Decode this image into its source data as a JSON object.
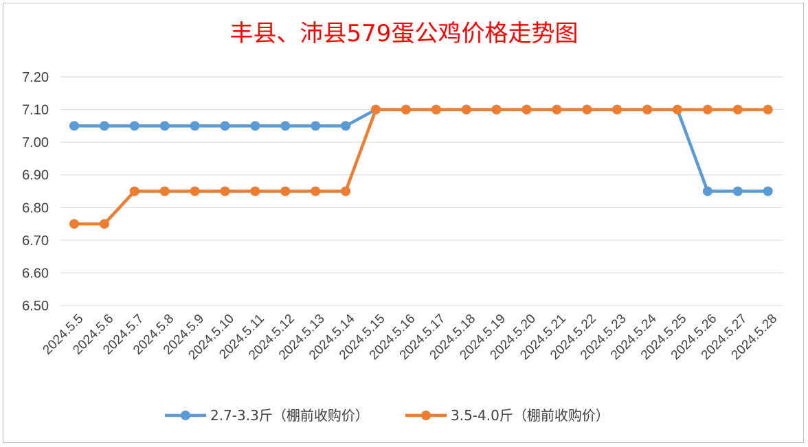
{
  "chart_data": {
    "type": "line",
    "title": "丰县、沛县579蛋公鸡价格走势图",
    "categories": [
      "2024.5.5",
      "2024.5.6",
      "2024.5.7",
      "2024.5.8",
      "2024.5.9",
      "2024.5.10",
      "2024.5.11",
      "2024.5.12",
      "2024.5.13",
      "2024.5.14",
      "2024.5.15",
      "2024.5.16",
      "2024.5.17",
      "2024.5.18",
      "2024.5.19",
      "2024.5.20",
      "2024.5.21",
      "2024.5.22",
      "2024.5.23",
      "2024.5.24",
      "2024.5.25",
      "2024.5.26",
      "2024.5.27",
      "2024.5.28"
    ],
    "ylim": [
      6.5,
      7.2
    ],
    "yticks": [
      "6.50",
      "6.60",
      "6.70",
      "6.80",
      "6.90",
      "7.00",
      "7.10",
      "7.20"
    ],
    "grid": true,
    "legend_position": "bottom",
    "series": [
      {
        "name": "2.7-3.3斤（棚前收购价）",
        "color": "#5b9bd5",
        "values": [
          7.05,
          7.05,
          7.05,
          7.05,
          7.05,
          7.05,
          7.05,
          7.05,
          7.05,
          7.05,
          7.1,
          7.1,
          7.1,
          7.1,
          7.1,
          7.1,
          7.1,
          7.1,
          7.1,
          7.1,
          7.1,
          6.85,
          6.85,
          6.85
        ]
      },
      {
        "name": "3.5-4.0斤（棚前收购价）",
        "color": "#ed7d31",
        "values": [
          6.75,
          6.75,
          6.85,
          6.85,
          6.85,
          6.85,
          6.85,
          6.85,
          6.85,
          6.85,
          7.1,
          7.1,
          7.1,
          7.1,
          7.1,
          7.1,
          7.1,
          7.1,
          7.1,
          7.1,
          7.1,
          7.1,
          7.1,
          7.1
        ]
      }
    ]
  }
}
